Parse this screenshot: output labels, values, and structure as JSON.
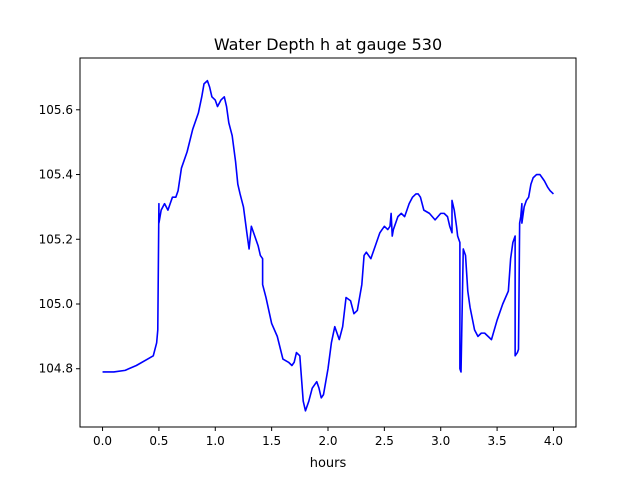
{
  "chart_data": {
    "type": "line",
    "title": "Water Depth h at gauge 530",
    "xlabel": "hours",
    "ylabel": "",
    "xlim": [
      -0.2,
      4.2
    ],
    "ylim": [
      104.62,
      105.76
    ],
    "xticks": [
      0.0,
      0.5,
      1.0,
      1.5,
      2.0,
      2.5,
      3.0,
      3.5,
      4.0
    ],
    "xtick_labels": [
      "0.0",
      "0.5",
      "1.0",
      "1.5",
      "2.0",
      "2.5",
      "3.0",
      "3.5",
      "4.0"
    ],
    "yticks": [
      104.8,
      105.0,
      105.2,
      105.4,
      105.6
    ],
    "ytick_labels": [
      "104.8",
      "105.0",
      "105.2",
      "105.4",
      "105.6"
    ],
    "grid": false,
    "series": [
      {
        "color": "#0000ff",
        "x": [
          0.0,
          0.1,
          0.2,
          0.3,
          0.4,
          0.45,
          0.48,
          0.49,
          0.5,
          0.5,
          0.52,
          0.55,
          0.58,
          0.6,
          0.62,
          0.65,
          0.67,
          0.7,
          0.75,
          0.8,
          0.85,
          0.88,
          0.9,
          0.93,
          0.95,
          0.97,
          1.0,
          1.02,
          1.05,
          1.08,
          1.1,
          1.12,
          1.15,
          1.18,
          1.2,
          1.22,
          1.25,
          1.28,
          1.3,
          1.32,
          1.33,
          1.35,
          1.38,
          1.4,
          1.42,
          1.42,
          1.45,
          1.5,
          1.55,
          1.6,
          1.65,
          1.68,
          1.7,
          1.72,
          1.75,
          1.78,
          1.8,
          1.83,
          1.86,
          1.9,
          1.92,
          1.94,
          1.96,
          2.0,
          2.03,
          2.06,
          2.1,
          2.13,
          2.16,
          2.2,
          2.23,
          2.26,
          2.3,
          2.32,
          2.34,
          2.36,
          2.38,
          2.42,
          2.46,
          2.5,
          2.53,
          2.55,
          2.56,
          2.57,
          2.58,
          2.6,
          2.62,
          2.65,
          2.68,
          2.7,
          2.72,
          2.75,
          2.78,
          2.8,
          2.82,
          2.85,
          2.9,
          2.95,
          3.0,
          3.03,
          3.06,
          3.08,
          3.1,
          3.1,
          3.12,
          3.14,
          3.15,
          3.15,
          3.16,
          3.17,
          3.17,
          3.18,
          3.2,
          3.2,
          3.22,
          3.24,
          3.26,
          3.3,
          3.33,
          3.36,
          3.39,
          3.42,
          3.45,
          3.5,
          3.55,
          3.6,
          3.62,
          3.64,
          3.65,
          3.66,
          3.66,
          3.68,
          3.69,
          3.7,
          3.7,
          3.71,
          3.72,
          3.72,
          3.74,
          3.76,
          3.78,
          3.8,
          3.82,
          3.85,
          3.88,
          3.9,
          3.92,
          3.95,
          3.97,
          4.0
        ],
        "y": [
          104.79,
          104.79,
          104.795,
          104.81,
          104.83,
          104.84,
          104.88,
          104.92,
          105.31,
          105.25,
          105.29,
          105.31,
          105.29,
          105.31,
          105.33,
          105.33,
          105.35,
          105.42,
          105.47,
          105.54,
          105.59,
          105.64,
          105.68,
          105.69,
          105.67,
          105.64,
          105.63,
          105.61,
          105.63,
          105.64,
          105.61,
          105.56,
          105.52,
          105.44,
          105.37,
          105.34,
          105.3,
          105.22,
          105.17,
          105.24,
          105.23,
          105.21,
          105.18,
          105.15,
          105.14,
          105.06,
          105.02,
          104.94,
          104.9,
          104.83,
          104.82,
          104.81,
          104.82,
          104.85,
          104.84,
          104.7,
          104.67,
          104.7,
          104.74,
          104.76,
          104.74,
          104.71,
          104.72,
          104.8,
          104.88,
          104.93,
          104.89,
          104.93,
          105.02,
          105.01,
          104.97,
          104.98,
          105.06,
          105.15,
          105.16,
          105.15,
          105.14,
          105.18,
          105.22,
          105.24,
          105.23,
          105.24,
          105.28,
          105.21,
          105.23,
          105.25,
          105.27,
          105.28,
          105.27,
          105.29,
          105.31,
          105.33,
          105.34,
          105.34,
          105.33,
          105.29,
          105.28,
          105.26,
          105.28,
          105.28,
          105.27,
          105.24,
          105.22,
          105.32,
          105.29,
          105.24,
          105.21,
          105.21,
          105.2,
          105.19,
          104.8,
          104.79,
          105.17,
          105.17,
          105.15,
          105.04,
          104.99,
          104.92,
          104.9,
          104.91,
          104.91,
          104.9,
          104.89,
          104.95,
          105.0,
          105.04,
          105.14,
          105.19,
          105.2,
          105.21,
          104.84,
          104.85,
          104.86,
          105.25,
          105.25,
          105.27,
          105.31,
          105.25,
          105.3,
          105.32,
          105.33,
          105.37,
          105.39,
          105.4,
          105.4,
          105.39,
          105.38,
          105.36,
          105.35,
          105.34
        ]
      }
    ]
  }
}
